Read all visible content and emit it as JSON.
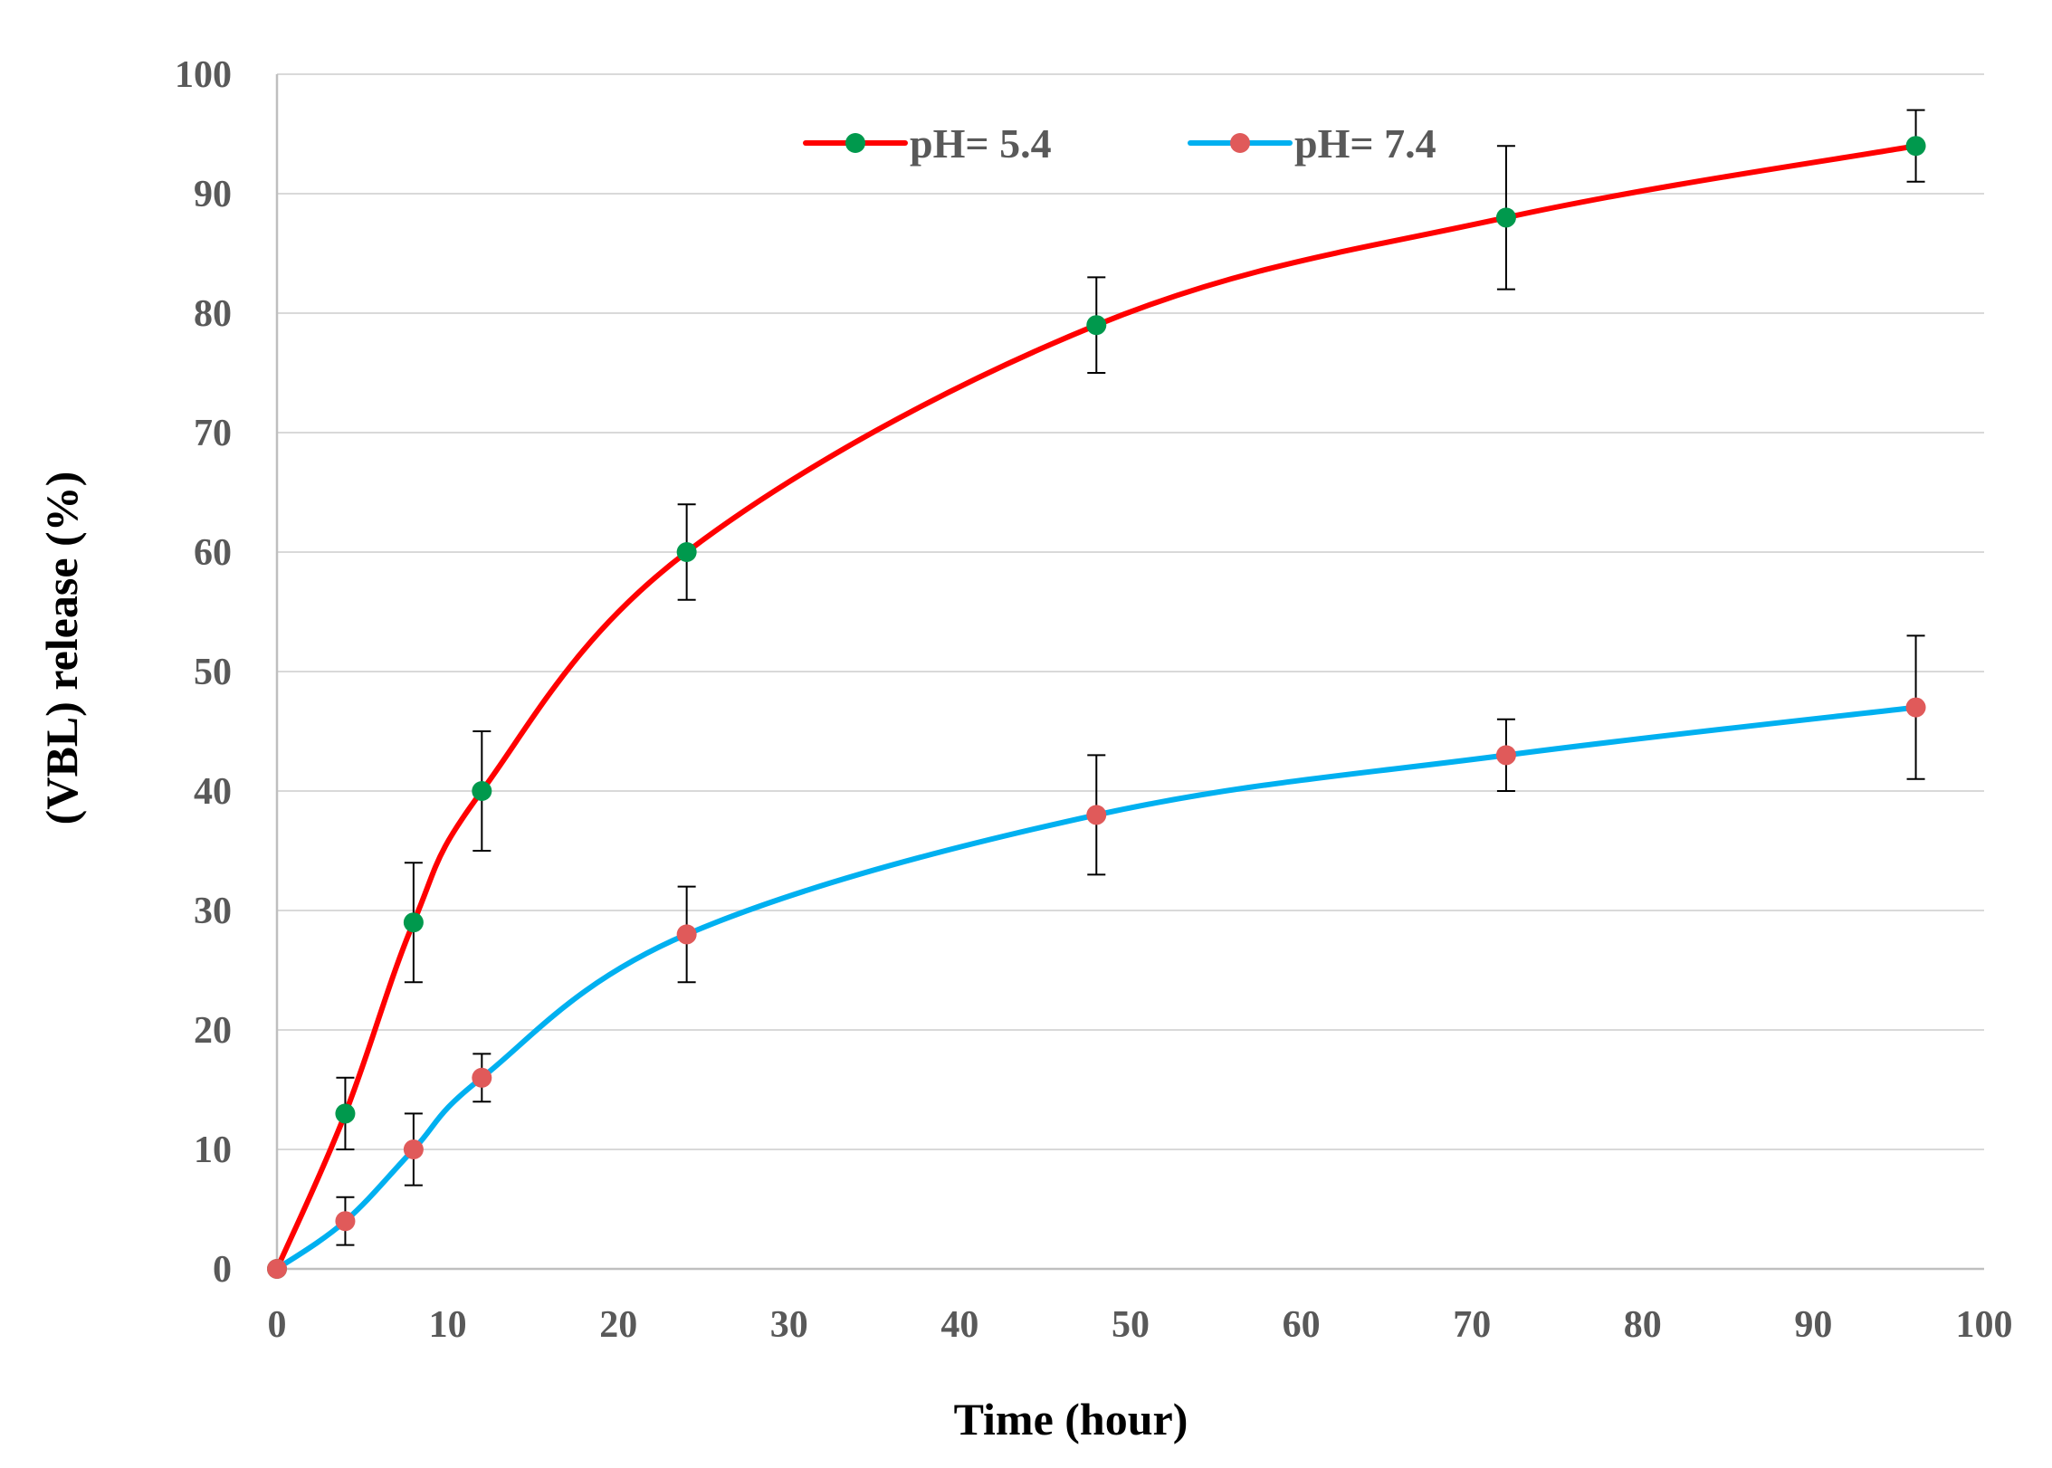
{
  "chart_data": {
    "type": "line",
    "title": "",
    "xlabel": "Time (hour)",
    "ylabel": "(VBL) release (%)",
    "xlim": [
      0,
      100
    ],
    "ylim": [
      0,
      100
    ],
    "xticks": [
      0,
      10,
      20,
      30,
      40,
      50,
      60,
      70,
      80,
      90,
      100
    ],
    "yticks": [
      0,
      10,
      20,
      30,
      40,
      50,
      60,
      70,
      80,
      90,
      100
    ],
    "grid": "horizontal",
    "legend_position": "top-center",
    "x": [
      0,
      4,
      8,
      12,
      24,
      48,
      72,
      96
    ],
    "series": [
      {
        "name": "pH= 5.4",
        "line_color": "#ff0000",
        "marker_color": "#00994d",
        "values": [
          0,
          13,
          29,
          40,
          60,
          79,
          88,
          94
        ],
        "errors": [
          0,
          3,
          5,
          5,
          4,
          4,
          6,
          3
        ]
      },
      {
        "name": "pH= 7.4",
        "line_color": "#00b0f0",
        "marker_color": "#e05a5a",
        "values": [
          0,
          4,
          10,
          16,
          28,
          38,
          43,
          47
        ],
        "errors": [
          0,
          2,
          3,
          2,
          4,
          5,
          3,
          6
        ]
      }
    ]
  }
}
